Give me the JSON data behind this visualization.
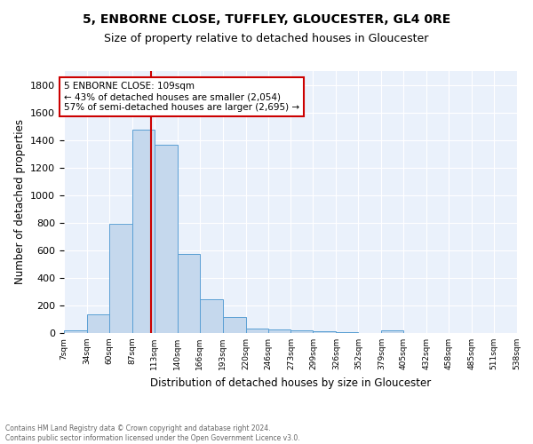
{
  "title1": "5, ENBORNE CLOSE, TUFFLEY, GLOUCESTER, GL4 0RE",
  "title2": "Size of property relative to detached houses in Gloucester",
  "xlabel": "Distribution of detached houses by size in Gloucester",
  "ylabel": "Number of detached properties",
  "bar_color": "#c5d8ed",
  "bar_edge_color": "#5a9fd4",
  "background_color": "#eaf1fb",
  "grid_color": "white",
  "annotation_box_color": "#cc0000",
  "vline_color": "#cc0000",
  "bin_edges": [
    7,
    34,
    60,
    87,
    113,
    140,
    166,
    193,
    220,
    246,
    273,
    299,
    326,
    352,
    379,
    405,
    432,
    458,
    485,
    511,
    538
  ],
  "bar_heights": [
    20,
    135,
    790,
    1475,
    1365,
    575,
    245,
    115,
    35,
    28,
    18,
    15,
    5,
    0,
    18,
    0,
    0,
    0,
    0,
    0
  ],
  "vline_x": 109,
  "annotation_line1": "5 ENBORNE CLOSE: 109sqm",
  "annotation_line2": "← 43% of detached houses are smaller (2,054)",
  "annotation_line3": "57% of semi-detached houses are larger (2,695) →",
  "footer1": "Contains HM Land Registry data © Crown copyright and database right 2024.",
  "footer2": "Contains public sector information licensed under the Open Government Licence v3.0.",
  "tick_labels": [
    "7sqm",
    "34sqm",
    "60sqm",
    "87sqm",
    "113sqm",
    "140sqm",
    "166sqm",
    "193sqm",
    "220sqm",
    "246sqm",
    "273sqm",
    "299sqm",
    "326sqm",
    "352sqm",
    "379sqm",
    "405sqm",
    "432sqm",
    "458sqm",
    "485sqm",
    "511sqm",
    "538sqm"
  ],
  "ylim": [
    0,
    1900
  ],
  "title1_fontsize": 10,
  "title2_fontsize": 9
}
